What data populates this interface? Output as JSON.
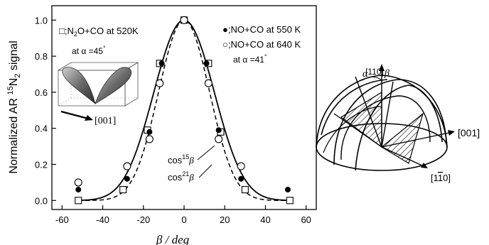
{
  "chart_data": {
    "type": "scatter",
    "xlabel": "β / deg",
    "ylabel_parts": {
      "prefix": "Normalized AR ",
      "sup": "15",
      "mid": "N",
      "sub": "2",
      "suffix": " signal"
    },
    "xlim": [
      -65,
      65
    ],
    "ylim": [
      -0.05,
      1.08
    ],
    "xticks": [
      "-60",
      "-40",
      "-20",
      "0",
      "20",
      "40",
      "60"
    ],
    "xtick_values": [
      -60,
      -40,
      -20,
      0,
      20,
      40,
      60
    ],
    "yticks": [
      "0.0",
      "0.2",
      "0.4",
      "0.6",
      "0.8",
      "1.0"
    ],
    "ytick_values": [
      0.0,
      0.2,
      0.4,
      0.6,
      0.8,
      1.0
    ],
    "series": [
      {
        "marker": "open-square",
        "label_parts": [
          "□;N",
          "2",
          "O+CO at 520K"
        ],
        "points": [
          [
            -52,
            0.0
          ],
          [
            -30,
            0.06
          ],
          [
            -18,
            0.39
          ],
          [
            -12,
            0.76
          ],
          [
            0,
            1.0
          ],
          [
            12,
            0.76
          ],
          [
            18,
            0.38
          ],
          [
            30,
            0.06
          ],
          [
            52,
            0.0
          ]
        ]
      },
      {
        "marker": "filled-circle",
        "label": "●;NO+CO at 550 K",
        "points": [
          [
            -52,
            0.06
          ],
          [
            -28,
            0.12
          ],
          [
            -17,
            0.38
          ],
          [
            -11,
            0.76
          ],
          [
            0,
            1.0
          ],
          [
            11,
            0.76
          ],
          [
            17,
            0.39
          ],
          [
            28,
            0.12
          ],
          [
            51,
            0.06
          ]
        ]
      },
      {
        "marker": "open-circle",
        "label": "○;NO+CO at 640 K",
        "points": [
          [
            -52,
            0.1
          ],
          [
            -28,
            0.19
          ],
          [
            -17,
            0.34
          ],
          [
            -12,
            0.65
          ],
          [
            0,
            1.0
          ],
          [
            12,
            0.65
          ],
          [
            17,
            0.34
          ],
          [
            28,
            0.19
          ]
        ]
      }
    ],
    "curves": [
      {
        "name": "cos15β",
        "style": "solid",
        "power": 15
      },
      {
        "name": "cos21β",
        "style": "dashed",
        "power": 21
      }
    ],
    "annotations": {
      "alpha45_prefix": "at α =45",
      "alpha41_prefix": "at α =41",
      "degree": "°",
      "cos15_base": "cos",
      "cos15_exp": "15",
      "cos15_var": "β",
      "cos21_base": "cos",
      "cos21_exp": "21",
      "cos21_var": "β",
      "inset_direction": "[001]"
    }
  },
  "diagram": {
    "label_110": "[110]",
    "label_001": "[001]",
    "label_1bar10": "[1",
    "label_1bar10_bar": "1",
    "label_1bar10_end": "0]",
    "alpha": "α",
    "beta": "β"
  }
}
